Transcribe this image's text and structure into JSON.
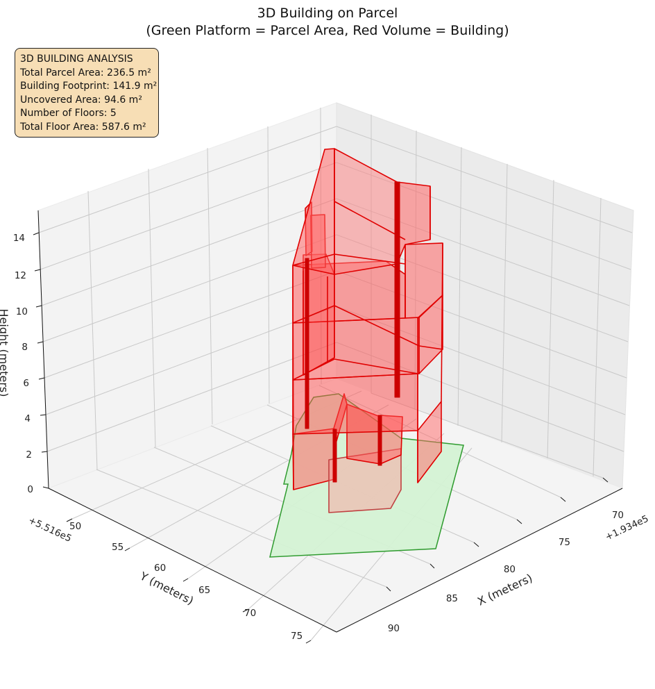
{
  "chart_data": {
    "type": "3d-polygons",
    "title": "3D Building on Parcel",
    "subtitle": "(Green Platform = Parcel Area, Red Volume = Building)",
    "xlabel": "X (meters)",
    "ylabel": "Y (meters)",
    "zlabel": "Height (meters)",
    "x_offset_text": "+1.934e5",
    "y_offset_text": "+5.516e5",
    "x_ticks": [
      "70",
      "75",
      "80",
      "85",
      "90"
    ],
    "y_ticks": [
      "50",
      "55",
      "60",
      "65",
      "70",
      "75"
    ],
    "z_ticks": [
      "0",
      "2",
      "4",
      "6",
      "8",
      "10",
      "12",
      "14"
    ],
    "series": [
      {
        "name": "Green Platform = Parcel Area",
        "color": "#d4f2d4",
        "edge": "#2e9b2e"
      },
      {
        "name": "Red Volume = Building",
        "color": "#ff4d4d",
        "edge": "#e00000"
      }
    ],
    "grid": true
  },
  "info_box": {
    "heading": "3D BUILDING ANALYSIS",
    "lines": [
      "Total Parcel Area: 236.5 m²",
      "Building Footprint: 141.9 m²",
      "Uncovered Area: 94.6 m²",
      "Number of Floors: 5",
      "Total Floor Area: 587.6 m²"
    ]
  }
}
